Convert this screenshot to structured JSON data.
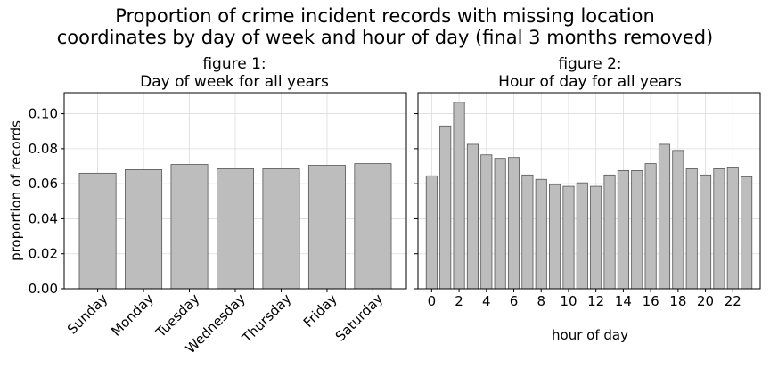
{
  "suptitle_line1": "Proportion of crime incident records with missing location",
  "suptitle_line2": "coordinates by day of week and hour of day (final 3 months removed)",
  "chart_data": [
    {
      "type": "bar",
      "title_line1": "figure 1:",
      "title_line2": "Day of week for all years",
      "xlabel": "",
      "ylabel": "proportion of records",
      "categories": [
        "Sunday",
        "Monday",
        "Tuesday",
        "Wednesday",
        "Thursday",
        "Friday",
        "Saturday"
      ],
      "values": [
        0.066,
        0.068,
        0.071,
        0.0685,
        0.0685,
        0.0705,
        0.0715
      ],
      "ylim": [
        0,
        0.112
      ],
      "yticks": [
        "0.00",
        "0.02",
        "0.04",
        "0.06",
        "0.08",
        "0.10"
      ],
      "grid": true,
      "bar_color": "#bdbdbd"
    },
    {
      "type": "bar",
      "title_line1": "figure 2:",
      "title_line2": "Hour of day for all years",
      "xlabel": "hour of day",
      "ylabel": "",
      "x": [
        0,
        1,
        2,
        3,
        4,
        5,
        6,
        7,
        8,
        9,
        10,
        11,
        12,
        13,
        14,
        15,
        16,
        17,
        18,
        19,
        20,
        21,
        22,
        23
      ],
      "xticks": [
        "0",
        "2",
        "4",
        "6",
        "8",
        "10",
        "12",
        "14",
        "16",
        "18",
        "20",
        "22"
      ],
      "values": [
        0.0645,
        0.093,
        0.1065,
        0.0825,
        0.0765,
        0.0745,
        0.075,
        0.065,
        0.0625,
        0.0595,
        0.0585,
        0.0605,
        0.0585,
        0.065,
        0.0675,
        0.0675,
        0.0715,
        0.0825,
        0.079,
        0.0685,
        0.065,
        0.0685,
        0.0695,
        0.064
      ],
      "ylim": [
        0,
        0.112
      ],
      "grid": true,
      "bar_color": "#bdbdbd"
    }
  ]
}
